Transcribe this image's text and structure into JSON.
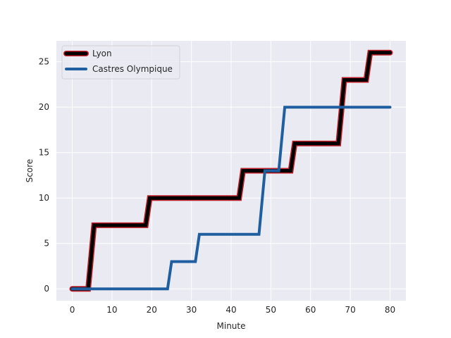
{
  "chart_data": {
    "type": "line",
    "title": "",
    "xlabel": "Minute",
    "ylabel": "Score",
    "xlim": [
      -4,
      84
    ],
    "ylim": [
      -1.3,
      27.3
    ],
    "xticks": [
      0,
      10,
      20,
      30,
      40,
      50,
      60,
      70,
      80
    ],
    "yticks": [
      0,
      5,
      10,
      15,
      20,
      25
    ],
    "grid": true,
    "legend_position": "upper-left",
    "background": "#eaeaf2",
    "series": [
      {
        "name": "Lyon",
        "color": "#000000",
        "edge_color": "#c0202a",
        "points": [
          [
            0,
            0
          ],
          [
            4,
            0
          ],
          [
            5.5,
            7
          ],
          [
            18.5,
            7
          ],
          [
            19.5,
            10
          ],
          [
            42,
            10
          ],
          [
            43,
            13
          ],
          [
            50,
            13
          ],
          [
            51,
            13
          ],
          [
            55,
            13
          ],
          [
            56,
            16
          ],
          [
            67,
            16
          ],
          [
            68.5,
            23
          ],
          [
            74,
            23
          ],
          [
            75,
            26
          ],
          [
            80,
            26
          ]
        ]
      },
      {
        "name": "Castres Olympique",
        "color": "#1f5fa0",
        "edge_color": "#1f5fa0",
        "points": [
          [
            0,
            0
          ],
          [
            24,
            0
          ],
          [
            25,
            3
          ],
          [
            31,
            3
          ],
          [
            32,
            6
          ],
          [
            47,
            6
          ],
          [
            48.5,
            13
          ],
          [
            52,
            13
          ],
          [
            53.5,
            20
          ],
          [
            80,
            20
          ]
        ]
      }
    ]
  }
}
